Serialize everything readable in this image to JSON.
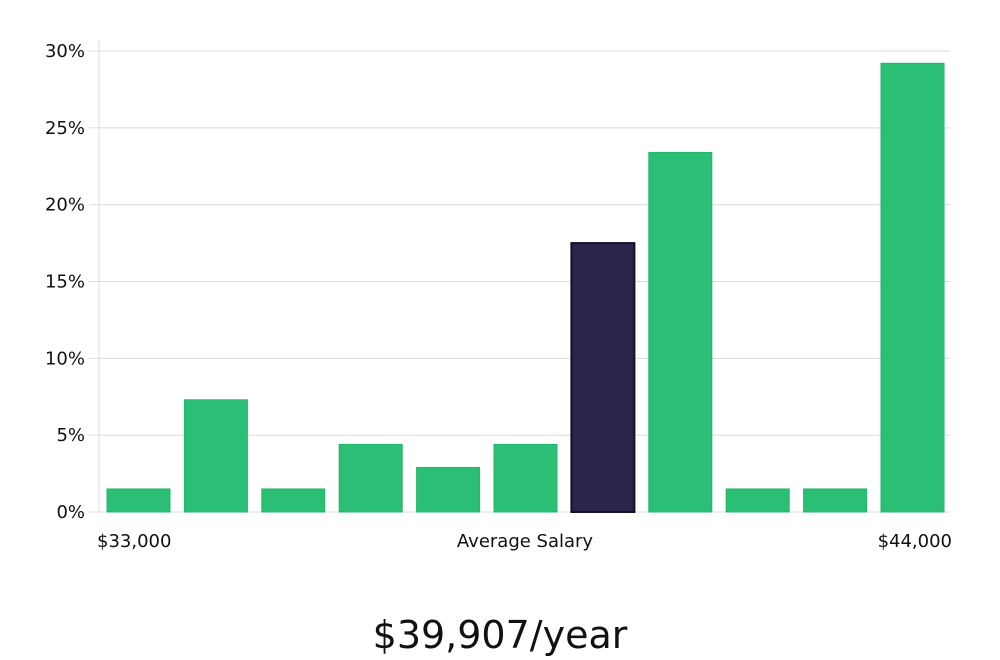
{
  "chart_data": {
    "type": "bar",
    "categories": [
      "1",
      "2",
      "3",
      "4",
      "5",
      "6",
      "7",
      "8",
      "9",
      "10",
      "11"
    ],
    "values": [
      1.5,
      7.3,
      1.5,
      4.4,
      2.9,
      4.4,
      17.5,
      23.4,
      1.5,
      1.5,
      29.2
    ],
    "highlight_index": 6,
    "ylim": [
      0,
      30
    ],
    "yticks": [
      "0%",
      "5%",
      "10%",
      "15%",
      "20%",
      "25%",
      "30%"
    ],
    "ytick_values": [
      0,
      5,
      10,
      15,
      20,
      25,
      30
    ],
    "x_min_label": "$33,000",
    "x_max_label": "$44,000",
    "xlabel": "Average Salary",
    "grid": true,
    "colors": {
      "bar": "#2bbf76",
      "highlight": "#29264a",
      "highlight_border": "#121030"
    }
  },
  "summary": "$39,907/year"
}
